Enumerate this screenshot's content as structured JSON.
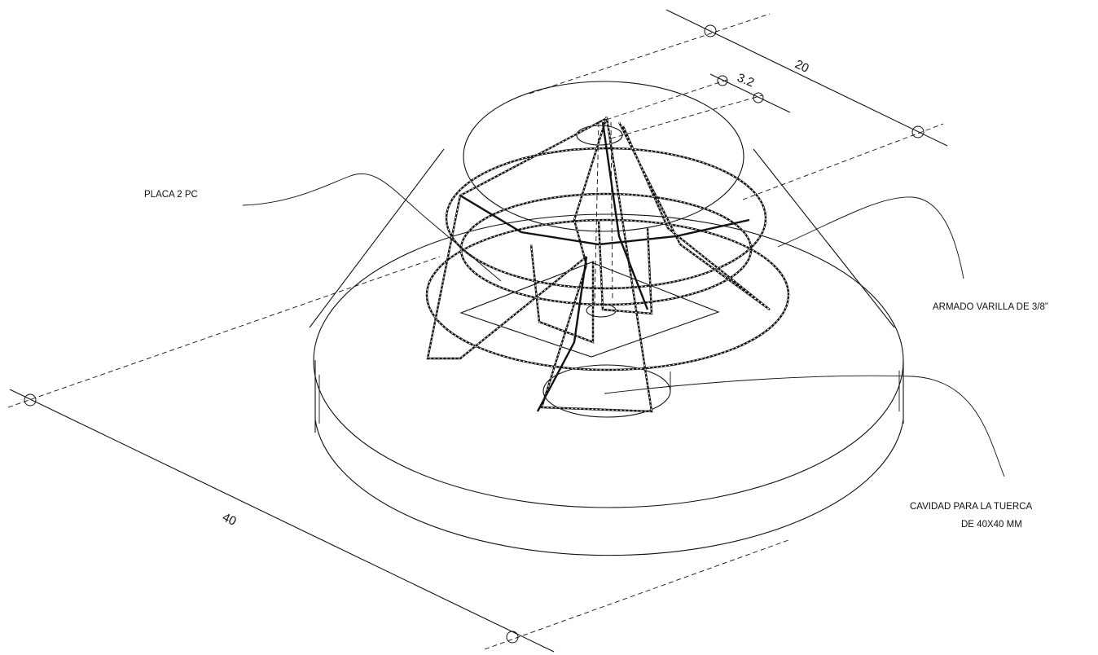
{
  "dimensions": {
    "top_width": "20",
    "rebar_gap": "3.2",
    "base_width": "40"
  },
  "labels": {
    "placa": "PLACA 2 PC",
    "armado": "ARMADO VARILLA DE 3/8”",
    "cavidad_line1": "CAVIDAD PARA LA TUERCA",
    "cavidad_line2": "DE 40X40 MM"
  }
}
